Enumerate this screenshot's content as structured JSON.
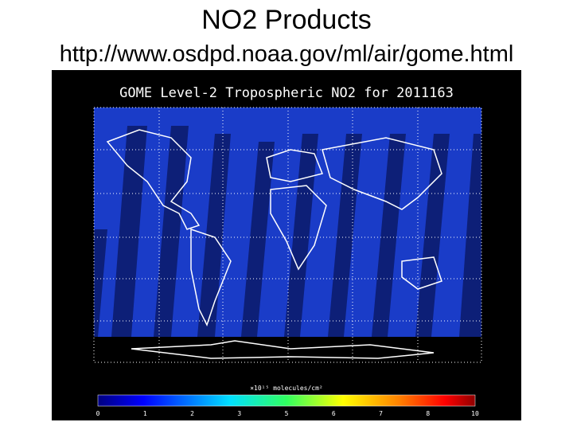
{
  "slide": {
    "title": "NO2 Products",
    "url": "http://www.osdpd.noaa.gov/ml/air/gome.html"
  },
  "figure": {
    "title": "GOME Level-2 Tropospheric NO2 for 2011163",
    "colorbar_label": "×10¹⁵ molecules/cm²",
    "colorbar_ticks": [
      "0",
      "1",
      "2",
      "3",
      "5",
      "6",
      "7",
      "8",
      "10"
    ]
  }
}
